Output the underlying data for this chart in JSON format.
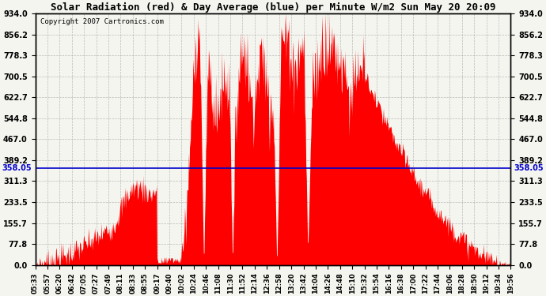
{
  "title": "Solar Radiation (red) & Day Average (blue) per Minute W/m2 Sun May 20 20:09",
  "copyright": "Copyright 2007 Cartronics.com",
  "ymin": 0.0,
  "ymax": 934.0,
  "yticks": [
    0.0,
    77.8,
    155.7,
    233.5,
    311.3,
    389.2,
    467.0,
    544.8,
    622.7,
    700.5,
    778.3,
    856.2,
    934.0
  ],
  "avg_line_y": 358.05,
  "avg_label": "358.05",
  "bg_color": "#f5f5f0",
  "fill_color": "#ff0000",
  "line_color": "#0000cc",
  "grid_color": "#aaaaaa",
  "xtick_labels": [
    "05:33",
    "05:57",
    "06:20",
    "06:42",
    "07:05",
    "07:27",
    "07:49",
    "08:11",
    "08:33",
    "08:55",
    "09:17",
    "09:40",
    "10:02",
    "10:24",
    "10:46",
    "11:08",
    "11:30",
    "11:52",
    "12:14",
    "12:36",
    "12:58",
    "13:20",
    "13:42",
    "14:04",
    "14:26",
    "14:48",
    "15:10",
    "15:32",
    "15:54",
    "16:16",
    "16:38",
    "17:00",
    "17:22",
    "17:44",
    "18:06",
    "18:28",
    "18:50",
    "19:12",
    "19:34",
    "19:56"
  ],
  "figsize": [
    6.9,
    3.75
  ],
  "dpi": 100
}
